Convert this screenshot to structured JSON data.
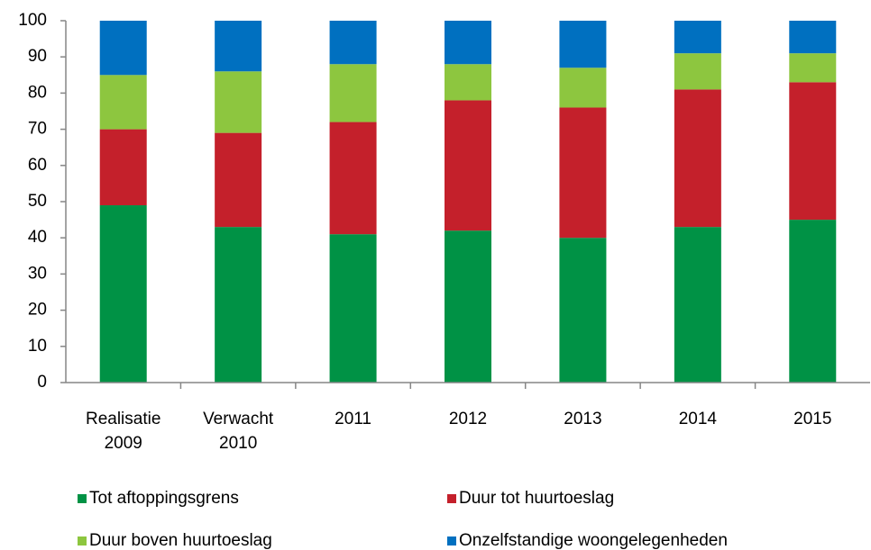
{
  "chart_data": {
    "type": "stacked_bar",
    "categories": [
      "Realisatie 2009",
      "Verwacht 2010",
      "2011",
      "2012",
      "2013",
      "2014",
      "2015"
    ],
    "series": [
      {
        "name": "Tot aftoppingsgrens",
        "color": "#009245",
        "values": [
          49,
          43,
          41,
          42,
          40,
          43,
          45
        ]
      },
      {
        "name": "Duur tot huurtoeslag",
        "color": "#c4202b",
        "values": [
          21,
          26,
          31,
          36,
          36,
          38,
          38
        ]
      },
      {
        "name": "Duur boven huurtoeslag",
        "color": "#8dc63f",
        "values": [
          15,
          17,
          16,
          10,
          11,
          10,
          8
        ]
      },
      {
        "name": "Onzelfstandige woongelegenheden",
        "color": "#0070c0",
        "values": [
          15,
          14,
          12,
          12,
          13,
          9,
          9
        ]
      }
    ],
    "ylim": [
      0,
      100
    ],
    "yticks": [
      0,
      10,
      20,
      30,
      40,
      50,
      60,
      70,
      80,
      90,
      100
    ],
    "grid": false
  }
}
